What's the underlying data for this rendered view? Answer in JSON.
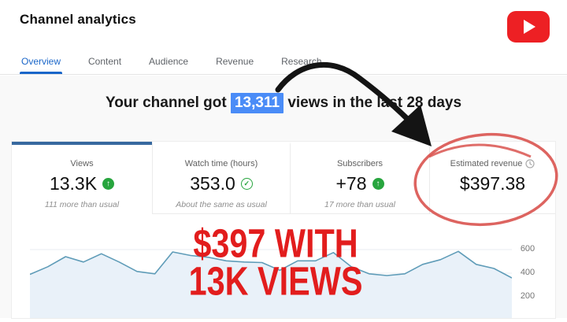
{
  "header": {
    "title": "Channel analytics"
  },
  "logo": {
    "label": "youtube-logo",
    "color": "#ed2024"
  },
  "tabs": [
    {
      "label": "Overview",
      "active": true
    },
    {
      "label": "Content",
      "active": false
    },
    {
      "label": "Audience",
      "active": false
    },
    {
      "label": "Revenue",
      "active": false
    },
    {
      "label": "Research",
      "active": false
    }
  ],
  "headline": {
    "prefix": "Your channel got ",
    "highlight": "13,311",
    "suffix": " views in the last 28 days",
    "highlight_bg": "#4a8cf7"
  },
  "metrics": [
    {
      "label": "Views",
      "value": "13.3K",
      "icon": "arrow-up-circle",
      "note": "111 more than usual"
    },
    {
      "label": "Watch time (hours)",
      "value": "353.0",
      "icon": "check-circle",
      "note": "About the same as usual"
    },
    {
      "label": "Subscribers",
      "value": "+78",
      "icon": "arrow-up-circle",
      "note": "17 more than usual"
    },
    {
      "label": "Estimated revenue",
      "value": "$397.38",
      "icon": "clock",
      "note": ""
    }
  ],
  "annotations": {
    "overlay_line1": "$397 WITH",
    "overlay_line2": "13K VIEWS",
    "overlay_color": "#e21d1d",
    "circle_color": "#d9534f",
    "arrow_color": "#141414"
  },
  "chart_data": {
    "type": "area",
    "title": "",
    "xlabel": "",
    "ylabel": "",
    "x_points": 28,
    "x_labels_visible": false,
    "values": [
      390,
      455,
      540,
      495,
      565,
      495,
      415,
      395,
      580,
      550,
      535,
      505,
      495,
      490,
      425,
      505,
      505,
      575,
      455,
      395,
      380,
      395,
      475,
      515,
      585,
      475,
      440,
      360
    ],
    "yticks": [
      200,
      400,
      600
    ],
    "ytick_labels": [
      "200",
      "400",
      "600"
    ],
    "ylim": [
      0,
      700
    ],
    "grid": true,
    "legend": "none",
    "line_color": "#5f9cb8",
    "fill_color": "#e9f1f9"
  }
}
